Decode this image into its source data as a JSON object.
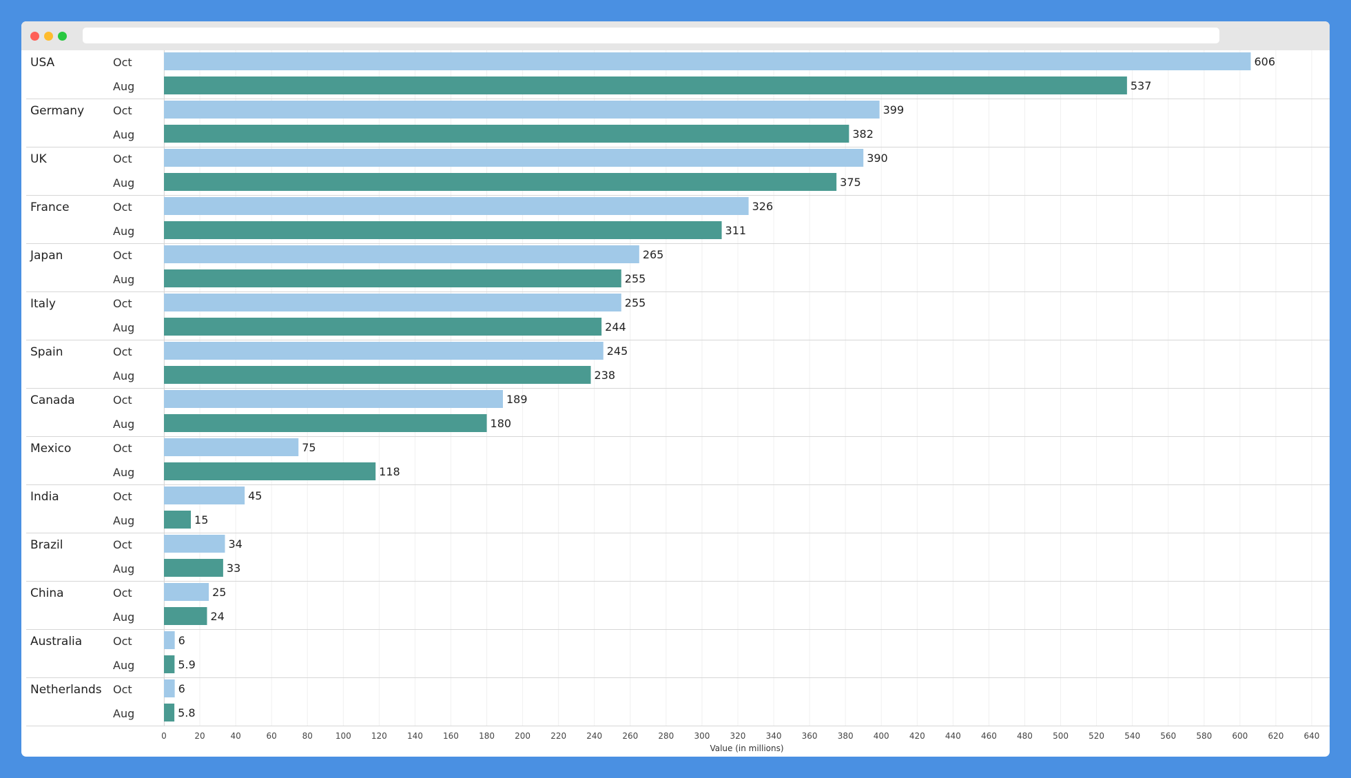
{
  "window": {
    "url": ""
  },
  "chart_data": {
    "type": "bar",
    "orientation": "horizontal",
    "categories": [
      "USA",
      "Germany",
      "UK",
      "France",
      "Japan",
      "Italy",
      "Spain",
      "Canada",
      "Mexico",
      "India",
      "Brazil",
      "China",
      "Australia",
      "Netherlands"
    ],
    "series": [
      {
        "name": "Oct",
        "color": "#a1c9e8",
        "values": [
          606,
          399,
          390,
          326,
          265,
          255,
          245,
          189,
          75,
          45,
          34,
          25,
          6,
          6
        ]
      },
      {
        "name": "Aug",
        "color": "#4a9a91",
        "values": [
          537,
          382,
          375,
          311,
          255,
          244,
          238,
          180,
          118,
          15,
          33,
          24,
          5.9,
          5.8
        ]
      }
    ],
    "xlabel": "Value (in millions)",
    "xlim": [
      0,
      650
    ],
    "xticks": [
      0,
      20,
      40,
      60,
      80,
      100,
      120,
      140,
      160,
      180,
      200,
      220,
      240,
      260,
      280,
      300,
      320,
      340,
      360,
      380,
      400,
      420,
      440,
      460,
      480,
      500,
      520,
      540,
      560,
      580,
      600,
      620,
      640
    ],
    "grid": true,
    "legend": "none"
  }
}
